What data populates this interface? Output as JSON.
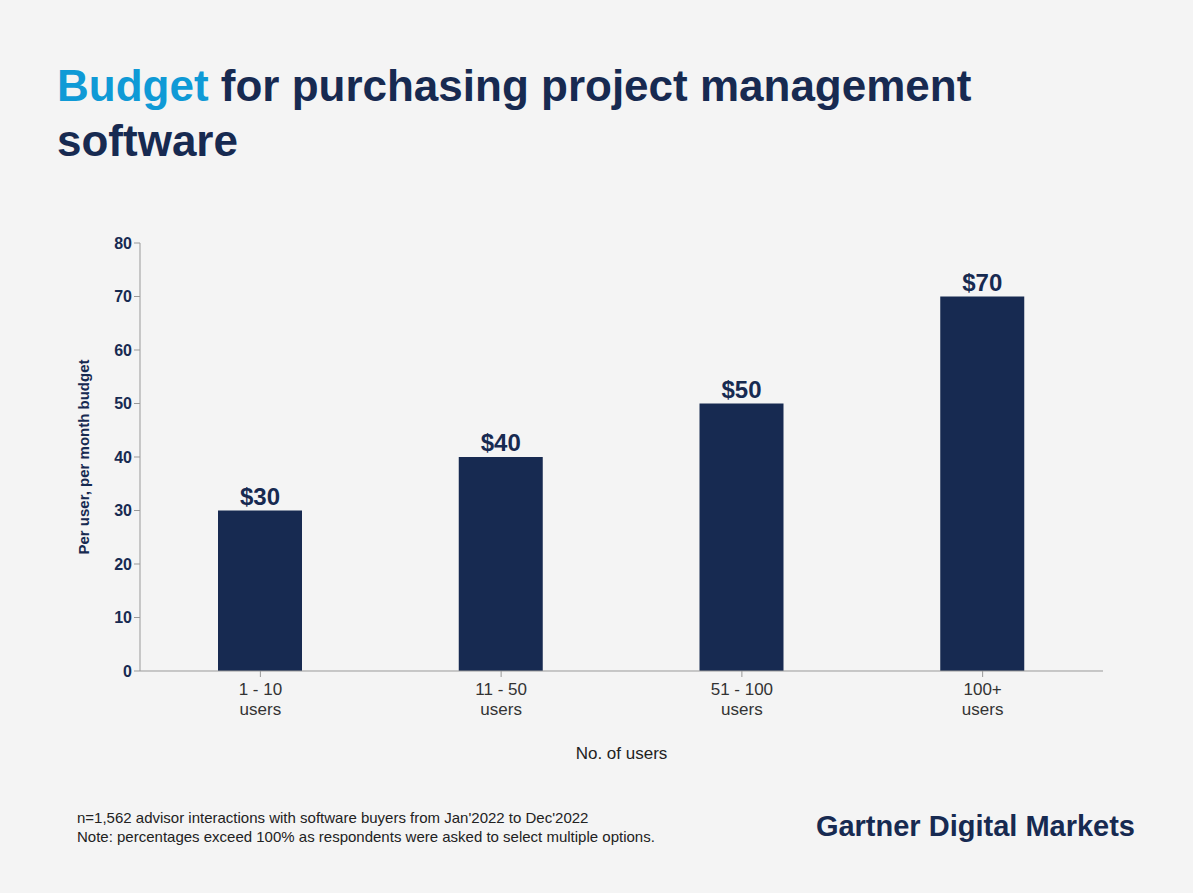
{
  "chart_data": {
    "type": "bar",
    "title": "Budget for purchasing project management software",
    "categories": [
      "1 - 10 users",
      "11 - 50 users",
      "51 - 100 users",
      "100+ users"
    ],
    "values": [
      30,
      40,
      50,
      70
    ],
    "value_labels": [
      "$30",
      "$40",
      "$50",
      "$70"
    ],
    "data_labels": true,
    "color": "#172a51",
    "x_label": "No. of users",
    "y_label": "Per user, per month budget",
    "ylim": [
      0,
      80
    ],
    "yticks": [
      0,
      10,
      20,
      30,
      40,
      50,
      60,
      70,
      80
    ],
    "grid": false,
    "footnotes": [
      "n=1,562 advisor interactions with software buyers from Jan'2022 to Dec'2022",
      "Note: percentages exceed 100% as respondents were asked to select multiple options."
    ],
    "source": "Gartner Digital Markets"
  }
}
